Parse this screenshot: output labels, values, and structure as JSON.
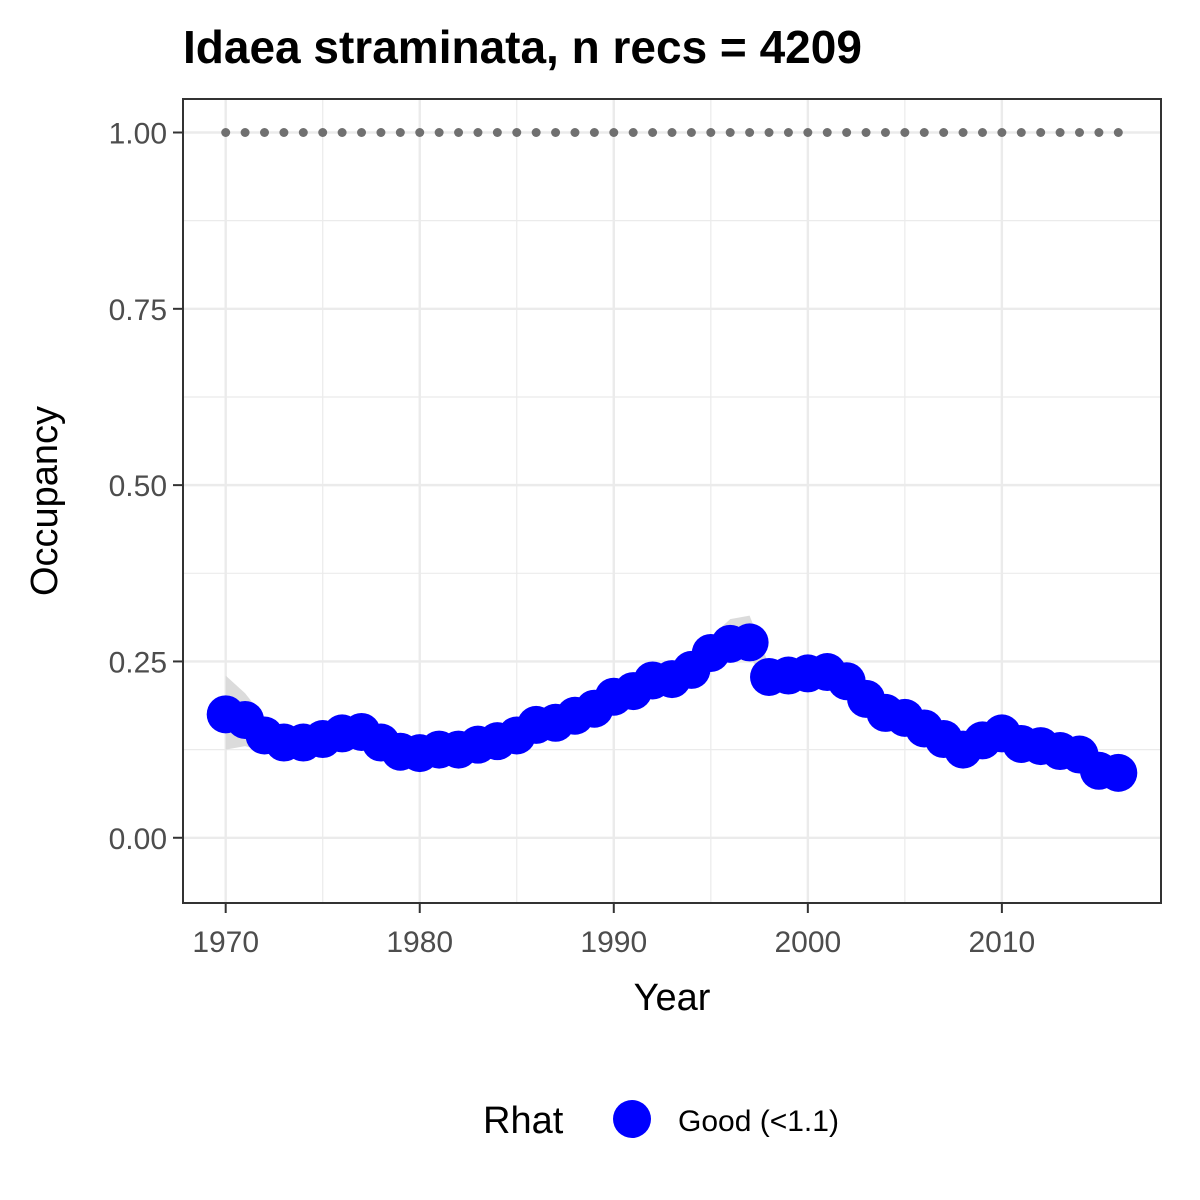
{
  "chart_data": {
    "type": "line",
    "title": "Idaea straminata, n recs = 4209",
    "xlabel": "Year",
    "ylabel": "Occupancy",
    "xlim": [
      1967.8,
      2018.2
    ],
    "ylim": [
      -0.0925,
      1.0475
    ],
    "x_ticks": [
      1970,
      1980,
      1990,
      2000,
      2010
    ],
    "x_tick_labels": [
      "1970",
      "1980",
      "1990",
      "2000",
      "2010"
    ],
    "y_ticks": [
      0,
      0.25,
      0.5,
      0.75,
      1.0
    ],
    "y_tick_labels": [
      "0.00",
      "0.25",
      "0.50",
      "0.75",
      "1.00"
    ],
    "grid": true,
    "legend": {
      "position": "bottom",
      "title": "Rhat",
      "entries": [
        {
          "label": "Good (<1.1)",
          "color": "#0000ff"
        }
      ]
    },
    "colors": {
      "points": "#0000ff",
      "ribbon": "#d9d9d9",
      "reference_dots": "#707070",
      "grid": "#ebebeb",
      "panel_border": "#333333"
    },
    "reference_series": {
      "x": [
        1970,
        1971,
        1972,
        1973,
        1974,
        1975,
        1976,
        1977,
        1978,
        1979,
        1980,
        1981,
        1982,
        1983,
        1984,
        1985,
        1986,
        1987,
        1988,
        1989,
        1990,
        1991,
        1992,
        1993,
        1994,
        1995,
        1996,
        1997,
        1998,
        1999,
        2000,
        2001,
        2002,
        2003,
        2004,
        2005,
        2006,
        2007,
        2008,
        2009,
        2010,
        2011,
        2012,
        2013,
        2014,
        2015,
        2016
      ],
      "y": [
        1,
        1,
        1,
        1,
        1,
        1,
        1,
        1,
        1,
        1,
        1,
        1,
        1,
        1,
        1,
        1,
        1,
        1,
        1,
        1,
        1,
        1,
        1,
        1,
        1,
        1,
        1,
        1,
        1,
        1,
        1,
        1,
        1,
        1,
        1,
        1,
        1,
        1,
        1,
        1,
        1,
        1,
        1,
        1,
        1,
        1,
        1
      ]
    },
    "series": [
      {
        "name": "Good (<1.1)",
        "x": [
          1970,
          1971,
          1972,
          1973,
          1974,
          1975,
          1976,
          1977,
          1978,
          1979,
          1980,
          1981,
          1982,
          1983,
          1984,
          1985,
          1986,
          1987,
          1988,
          1989,
          1990,
          1991,
          1992,
          1993,
          1994,
          1995,
          1996,
          1997,
          1998,
          1999,
          2000,
          2001,
          2002,
          2003,
          2004,
          2005,
          2006,
          2007,
          2008,
          2009,
          2010,
          2011,
          2012,
          2013,
          2014,
          2015,
          2016
        ],
        "y": [
          0.175,
          0.167,
          0.145,
          0.135,
          0.135,
          0.14,
          0.148,
          0.15,
          0.135,
          0.122,
          0.12,
          0.125,
          0.125,
          0.132,
          0.137,
          0.145,
          0.16,
          0.163,
          0.173,
          0.183,
          0.2,
          0.208,
          0.223,
          0.225,
          0.238,
          0.262,
          0.275,
          0.277,
          0.228,
          0.23,
          0.233,
          0.235,
          0.222,
          0.197,
          0.177,
          0.17,
          0.155,
          0.14,
          0.125,
          0.138,
          0.148,
          0.133,
          0.13,
          0.123,
          0.118,
          0.095,
          0.092
        ],
        "lower": [
          0.125,
          0.13,
          0.122,
          0.118,
          0.118,
          0.122,
          0.128,
          0.13,
          0.118,
          0.108,
          0.106,
          0.11,
          0.112,
          0.118,
          0.123,
          0.13,
          0.145,
          0.148,
          0.158,
          0.168,
          0.185,
          0.193,
          0.207,
          0.21,
          0.222,
          0.243,
          0.255,
          0.257,
          0.214,
          0.216,
          0.218,
          0.22,
          0.207,
          0.183,
          0.164,
          0.157,
          0.142,
          0.127,
          0.113,
          0.125,
          0.134,
          0.12,
          0.117,
          0.111,
          0.105,
          0.083,
          0.08
        ],
        "upper": [
          0.23,
          0.205,
          0.17,
          0.155,
          0.156,
          0.162,
          0.17,
          0.172,
          0.155,
          0.14,
          0.137,
          0.142,
          0.143,
          0.15,
          0.154,
          0.163,
          0.177,
          0.18,
          0.19,
          0.2,
          0.216,
          0.225,
          0.24,
          0.243,
          0.257,
          0.285,
          0.31,
          0.315,
          0.245,
          0.246,
          0.25,
          0.252,
          0.238,
          0.212,
          0.192,
          0.185,
          0.17,
          0.155,
          0.14,
          0.153,
          0.163,
          0.148,
          0.145,
          0.138,
          0.133,
          0.11,
          0.107
        ]
      }
    ]
  }
}
